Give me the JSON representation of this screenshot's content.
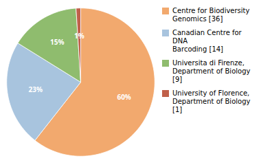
{
  "chart_data": {
    "type": "pie",
    "categories": [
      "Centre for Biodiversity\nGenomics [36]",
      "Canadian Centre for DNA\nBarcoding [14]",
      "Universita di Firenze,\nDepartment of Biology [9]",
      "University of Florence,\nDepartment of Biology [1]"
    ],
    "values": [
      60,
      23,
      15,
      1
    ],
    "value_labels": [
      "60%",
      "23%",
      "15%",
      "1%"
    ],
    "colors": [
      "#f2a96e",
      "#a8c4de",
      "#8fbc6e",
      "#c0604a"
    ],
    "data_labels": true,
    "legend": "right"
  }
}
